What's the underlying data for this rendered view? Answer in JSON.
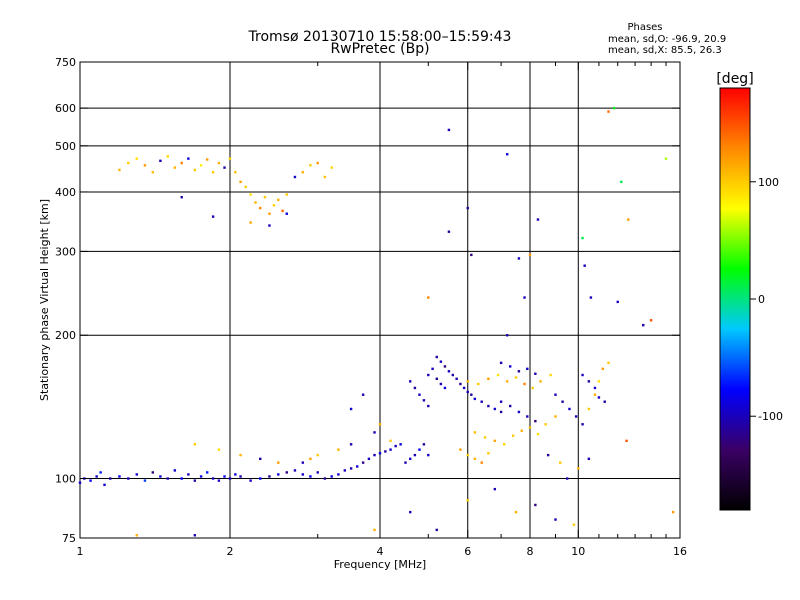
{
  "chart_data": {
    "type": "scatter",
    "title": "Tromsø 20130710 15:58:00–15:59:43",
    "subtitle": "RwPretec (Bp)",
    "xlabel": "Frequency [MHz]",
    "ylabel": "Stationary phase Virtual Height [km]",
    "xscale": "log",
    "yscale": "log",
    "xlim": [
      1,
      16
    ],
    "ylim": [
      75,
      750
    ],
    "xticks": [
      1,
      2,
      4,
      6,
      8,
      10,
      16
    ],
    "xtick_labels": [
      "1",
      "2",
      "4",
      "6",
      "8",
      "10",
      "16"
    ],
    "xgrid": [
      2,
      4,
      6,
      8,
      10
    ],
    "xminor_ticks": [
      3,
      5,
      7,
      9,
      11,
      12,
      13,
      14,
      15
    ],
    "yticks": [
      75,
      100,
      200,
      300,
      400,
      500,
      600,
      750
    ],
    "ytick_labels": [
      "75",
      "100",
      "200",
      "300",
      "400",
      "500",
      "600",
      "750"
    ],
    "ygrid": [
      100,
      200,
      300,
      400,
      500,
      600
    ],
    "grid": true,
    "info": {
      "heading": "Phases",
      "line_o": "mean, sd,O: -96.9, 20.9",
      "line_x": "mean, sd,X:  85.5, 26.3"
    },
    "colorbar": {
      "label": "[deg]",
      "range": [
        -180,
        180
      ],
      "ticks": [
        100,
        0,
        -100
      ],
      "tick_labels": [
        "100",
        "0",
        "-100"
      ],
      "stops": [
        "#000000",
        "#3a0066",
        "#0000ff",
        "#00c8ff",
        "#00ff00",
        "#ffff00",
        "#ff8800",
        "#ff0000"
      ]
    },
    "series": [
      {
        "name": "Phase points (sampled)",
        "points": [
          [
            1.0,
            98,
            -90
          ],
          [
            1.02,
            100,
            -95
          ],
          [
            1.05,
            99,
            -80
          ],
          [
            1.08,
            101,
            -100
          ],
          [
            1.1,
            103,
            -70
          ],
          [
            1.12,
            97,
            -90
          ],
          [
            1.15,
            100,
            -110
          ],
          [
            1.2,
            101,
            -85
          ],
          [
            1.25,
            100,
            -100
          ],
          [
            1.3,
            102,
            -95
          ],
          [
            1.35,
            99,
            -60
          ],
          [
            1.4,
            103,
            -120
          ],
          [
            1.45,
            101,
            -90
          ],
          [
            1.5,
            100,
            -105
          ],
          [
            1.55,
            104,
            -95
          ],
          [
            1.6,
            100,
            -80
          ],
          [
            1.65,
            102,
            -100
          ],
          [
            1.7,
            99,
            -110
          ],
          [
            1.75,
            101,
            -90
          ],
          [
            1.8,
            103,
            -70
          ],
          [
            1.85,
            100,
            -100
          ],
          [
            1.9,
            99,
            -95
          ],
          [
            1.95,
            101,
            -85
          ],
          [
            2.0,
            100,
            -100
          ],
          [
            2.05,
            102,
            -90
          ],
          [
            2.1,
            101,
            -105
          ],
          [
            2.2,
            99,
            -95
          ],
          [
            2.3,
            100,
            -80
          ],
          [
            2.4,
            101,
            -110
          ],
          [
            2.5,
            102,
            -90
          ],
          [
            2.6,
            103,
            -120
          ],
          [
            2.7,
            104,
            -100
          ],
          [
            2.8,
            102,
            -95
          ],
          [
            2.9,
            101,
            -85
          ],
          [
            3.0,
            103,
            -100
          ],
          [
            3.1,
            100,
            -110
          ],
          [
            3.2,
            101,
            -90
          ],
          [
            3.3,
            102,
            -95
          ],
          [
            3.4,
            104,
            -100
          ],
          [
            3.5,
            105,
            -105
          ],
          [
            3.6,
            106,
            -90
          ],
          [
            3.7,
            108,
            -115
          ],
          [
            3.8,
            110,
            -95
          ],
          [
            3.9,
            112,
            -100
          ],
          [
            4.0,
            113,
            -85
          ],
          [
            4.1,
            114,
            -110
          ],
          [
            4.2,
            115,
            -95
          ],
          [
            4.3,
            117,
            -100
          ],
          [
            4.4,
            118,
            -90
          ],
          [
            4.5,
            108,
            -105
          ],
          [
            4.6,
            110,
            -95
          ],
          [
            4.7,
            112,
            -100
          ],
          [
            4.8,
            115,
            -80
          ],
          [
            4.9,
            118,
            -110
          ],
          [
            5.0,
            112,
            -95
          ],
          [
            1.2,
            445,
            110
          ],
          [
            1.25,
            460,
            100
          ],
          [
            1.3,
            470,
            90
          ],
          [
            1.35,
            455,
            120
          ],
          [
            1.4,
            440,
            105
          ],
          [
            1.45,
            465,
            -100
          ],
          [
            1.5,
            475,
            95
          ],
          [
            1.55,
            450,
            110
          ],
          [
            1.6,
            460,
            130
          ],
          [
            1.65,
            470,
            -90
          ],
          [
            1.7,
            445,
            100
          ],
          [
            1.75,
            455,
            85
          ],
          [
            1.8,
            468,
            120
          ],
          [
            1.85,
            440,
            100
          ],
          [
            1.9,
            460,
            110
          ],
          [
            1.95,
            450,
            -110
          ],
          [
            2.0,
            470,
            95
          ],
          [
            2.05,
            440,
            105
          ],
          [
            2.1,
            420,
            120
          ],
          [
            2.15,
            410,
            100
          ],
          [
            2.2,
            395,
            90
          ],
          [
            2.25,
            380,
            110
          ],
          [
            2.3,
            370,
            130
          ],
          [
            2.35,
            390,
            100
          ],
          [
            2.4,
            360,
            120
          ],
          [
            2.45,
            375,
            95
          ],
          [
            2.5,
            385,
            110
          ],
          [
            2.55,
            365,
            140
          ],
          [
            2.6,
            395,
            100
          ],
          [
            2.7,
            430,
            -95
          ],
          [
            2.8,
            440,
            110
          ],
          [
            2.9,
            455,
            100
          ],
          [
            3.0,
            460,
            120
          ],
          [
            3.1,
            430,
            105
          ],
          [
            3.2,
            450,
            95
          ],
          [
            1.6,
            390,
            -110
          ],
          [
            1.85,
            355,
            -100
          ],
          [
            2.6,
            360,
            -90
          ],
          [
            2.2,
            345,
            115
          ],
          [
            2.4,
            340,
            -100
          ],
          [
            5.2,
            180,
            -110
          ],
          [
            5.3,
            176,
            -100
          ],
          [
            5.4,
            172,
            -120
          ],
          [
            5.5,
            168,
            -95
          ],
          [
            5.6,
            165,
            -105
          ],
          [
            5.7,
            162,
            -100
          ],
          [
            5.8,
            158,
            -115
          ],
          [
            5.9,
            155,
            -95
          ],
          [
            6.0,
            152,
            -100
          ],
          [
            6.1,
            150,
            -110
          ],
          [
            6.2,
            147,
            -90
          ],
          [
            6.4,
            145,
            -100
          ],
          [
            6.6,
            142,
            -105
          ],
          [
            6.8,
            140,
            -95
          ],
          [
            7.0,
            138,
            -110
          ],
          [
            5.0,
            165,
            -100
          ],
          [
            5.1,
            170,
            -95
          ],
          [
            5.2,
            162,
            -110
          ],
          [
            5.3,
            158,
            -100
          ],
          [
            5.4,
            155,
            -90
          ],
          [
            4.6,
            160,
            -100
          ],
          [
            4.7,
            155,
            -110
          ],
          [
            4.8,
            150,
            -95
          ],
          [
            4.9,
            146,
            -100
          ],
          [
            5.0,
            142,
            -105
          ],
          [
            6.0,
            160,
            110
          ],
          [
            6.3,
            158,
            100
          ],
          [
            6.6,
            162,
            120
          ],
          [
            6.9,
            165,
            90
          ],
          [
            7.2,
            160,
            110
          ],
          [
            7.5,
            163,
            100
          ],
          [
            7.8,
            158,
            130
          ],
          [
            8.1,
            155,
            100
          ],
          [
            8.4,
            160,
            110
          ],
          [
            8.8,
            165,
            95
          ],
          [
            6.2,
            125,
            105
          ],
          [
            6.5,
            122,
            100
          ],
          [
            6.8,
            120,
            115
          ],
          [
            7.1,
            118,
            95
          ],
          [
            7.4,
            123,
            100
          ],
          [
            7.7,
            126,
            110
          ],
          [
            8.0,
            128,
            105
          ],
          [
            8.3,
            124,
            90
          ],
          [
            8.6,
            130,
            100
          ],
          [
            9.0,
            135,
            110
          ],
          [
            5.8,
            115,
            120
          ],
          [
            6.0,
            112,
            100
          ],
          [
            6.2,
            110,
            110
          ],
          [
            6.4,
            108,
            130
          ],
          [
            6.6,
            113,
            100
          ],
          [
            7.0,
            145,
            -100
          ],
          [
            7.3,
            142,
            -110
          ],
          [
            7.6,
            138,
            -95
          ],
          [
            7.9,
            135,
            -100
          ],
          [
            8.2,
            132,
            -120
          ],
          [
            7.0,
            175,
            -100
          ],
          [
            7.3,
            172,
            -95
          ],
          [
            7.6,
            168,
            -110
          ],
          [
            7.9,
            170,
            -90
          ],
          [
            8.2,
            166,
            -100
          ],
          [
            9.0,
            150,
            -100
          ],
          [
            9.3,
            145,
            -110
          ],
          [
            9.6,
            140,
            -95
          ],
          [
            9.9,
            135,
            -100
          ],
          [
            10.2,
            130,
            -105
          ],
          [
            10.5,
            140,
            100
          ],
          [
            10.8,
            150,
            110
          ],
          [
            11.0,
            160,
            90
          ],
          [
            11.2,
            170,
            120
          ],
          [
            11.5,
            175,
            100
          ],
          [
            10.2,
            165,
            -100
          ],
          [
            10.5,
            160,
            -110
          ],
          [
            10.8,
            155,
            -95
          ],
          [
            11.0,
            148,
            -100
          ],
          [
            11.3,
            145,
            -105
          ],
          [
            5.5,
            540,
            -100
          ],
          [
            6.0,
            370,
            -110
          ],
          [
            6.1,
            295,
            -120
          ],
          [
            7.2,
            480,
            -90
          ],
          [
            8.3,
            350,
            -100
          ],
          [
            10.2,
            320,
            10
          ],
          [
            10.6,
            240,
            -100
          ],
          [
            11.8,
            600,
            20
          ],
          [
            12.2,
            420,
            10
          ],
          [
            12.6,
            350,
            120
          ],
          [
            11.5,
            590,
            140
          ],
          [
            13.5,
            210,
            -100
          ],
          [
            14.0,
            215,
            150
          ],
          [
            15.0,
            470,
            60
          ],
          [
            5.5,
            330,
            -110
          ],
          [
            7.6,
            290,
            -95
          ],
          [
            7.8,
            240,
            -100
          ],
          [
            8.0,
            295,
            120
          ],
          [
            7.2,
            200,
            -100
          ],
          [
            10.3,
            280,
            -100
          ],
          [
            5.0,
            240,
            130
          ],
          [
            12.0,
            235,
            -100
          ],
          [
            4.6,
            85,
            -100
          ],
          [
            5.2,
            78,
            -110
          ],
          [
            6.0,
            90,
            100
          ],
          [
            6.8,
            95,
            -100
          ],
          [
            7.5,
            85,
            110
          ],
          [
            8.2,
            88,
            -120
          ],
          [
            9.0,
            82,
            -100
          ],
          [
            9.8,
            80,
            100
          ],
          [
            12.5,
            120,
            150
          ],
          [
            15.5,
            85,
            120
          ],
          [
            1.3,
            76,
            110
          ],
          [
            1.7,
            76,
            -100
          ],
          [
            3.9,
            78,
            110
          ],
          [
            3.7,
            150,
            -100
          ],
          [
            4.0,
            130,
            110
          ],
          [
            3.5,
            140,
            -90
          ],
          [
            3.9,
            125,
            -100
          ],
          [
            4.2,
            120,
            100
          ],
          [
            3.3,
            115,
            110
          ],
          [
            3.5,
            118,
            -105
          ],
          [
            3.0,
            112,
            100
          ],
          [
            2.9,
            110,
            120
          ],
          [
            2.8,
            108,
            -100
          ],
          [
            1.9,
            115,
            90
          ],
          [
            2.1,
            112,
            110
          ],
          [
            2.5,
            108,
            120
          ],
          [
            2.3,
            110,
            -110
          ],
          [
            1.7,
            118,
            100
          ],
          [
            9.5,
            100,
            -100
          ],
          [
            10.0,
            105,
            110
          ],
          [
            10.5,
            110,
            -100
          ],
          [
            9.2,
            108,
            100
          ],
          [
            8.7,
            112,
            -110
          ]
        ]
      }
    ]
  }
}
